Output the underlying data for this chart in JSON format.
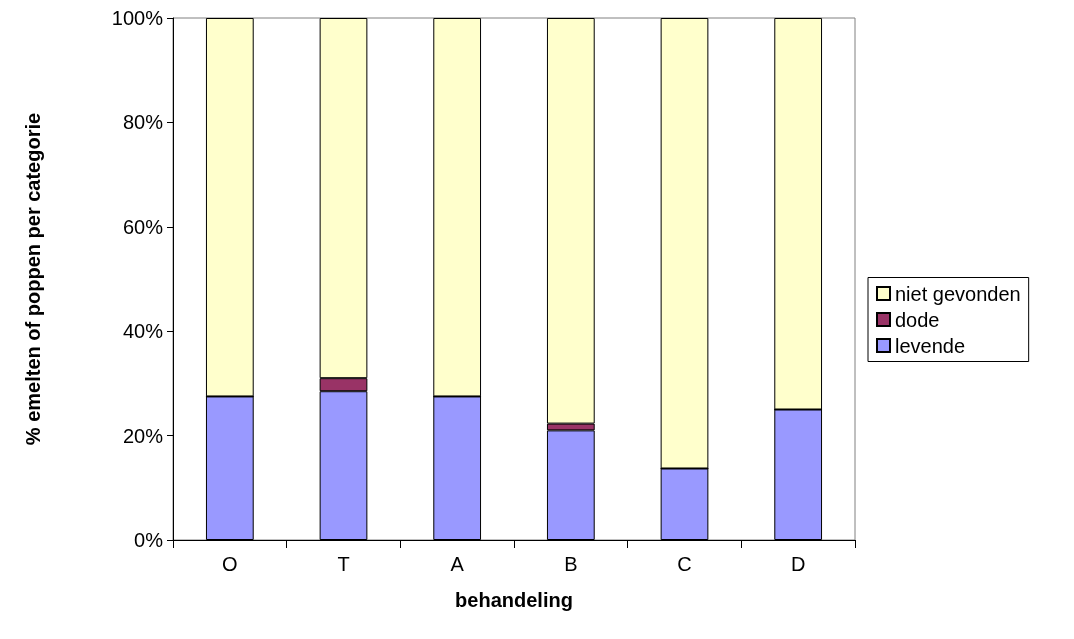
{
  "chart_data": {
    "type": "bar",
    "stacked": true,
    "xlabel": "behandeling",
    "ylabel": "% emelten of poppen per categorie",
    "categories": [
      "O",
      "T",
      "A",
      "B",
      "C",
      "D"
    ],
    "series": [
      {
        "name": "levende",
        "color": "#9999ff",
        "values": [
          27.5,
          28.5,
          27.5,
          21,
          13.7,
          25
        ]
      },
      {
        "name": "dode",
        "color": "#993366",
        "values": [
          0,
          2.5,
          0,
          1.3,
          0,
          0
        ]
      },
      {
        "name": "niet gevonden",
        "color": "#ffffcc",
        "values": [
          72.5,
          69,
          72.5,
          77.7,
          86.3,
          75
        ]
      }
    ],
    "ylim": [
      0,
      100
    ],
    "yticks": [
      {
        "value": 0,
        "label": "0%"
      },
      {
        "value": 20,
        "label": "20%"
      },
      {
        "value": 40,
        "label": "40%"
      },
      {
        "value": 60,
        "label": "60%"
      },
      {
        "value": 80,
        "label": "80%"
      },
      {
        "value": 100,
        "label": "100%"
      }
    ],
    "grid": false,
    "legend": "right"
  }
}
